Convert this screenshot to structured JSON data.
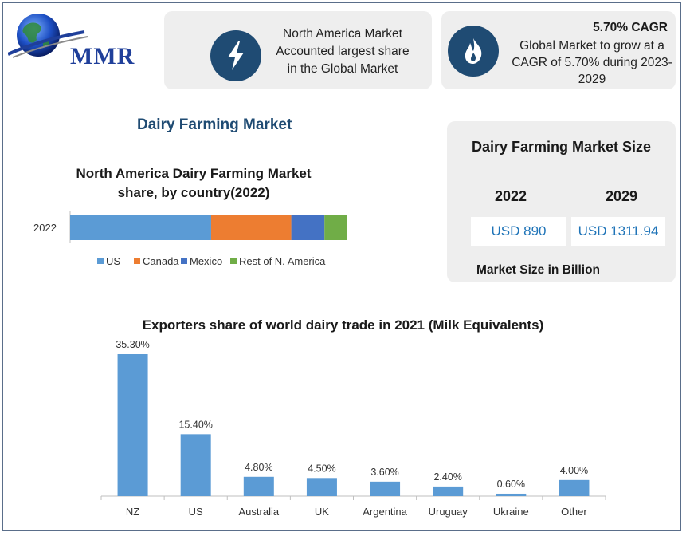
{
  "brand": {
    "logo_text": "MMR"
  },
  "highlight_1": {
    "icon": "lightning-icon",
    "lines": [
      "North America Market",
      "Accounted largest share",
      "in the Global Market"
    ]
  },
  "highlight_2": {
    "icon": "flame-icon",
    "title": "5.70% CAGR",
    "lines": [
      "Global Market to grow at a",
      "CAGR of 5.70% during 2023-",
      "2029"
    ]
  },
  "main_title": "Dairy Farming Market",
  "market_size": {
    "title": "Dairy Farming Market Size",
    "year_a": "2022",
    "year_b": "2029",
    "value_a": "USD 890",
    "value_b": "USD 1311.94",
    "footnote": "Market Size in Billion"
  },
  "colors": {
    "dark_blue": "#1f4b73",
    "bar_blue": "#5b9bd5",
    "orange": "#ed7d31",
    "mid_blue": "#4472c4",
    "green": "#70ad47"
  },
  "chart_data": [
    {
      "type": "bar",
      "orientation": "horizontal-stacked",
      "title": "North America Dairy Farming Market share, by country(2022)",
      "categories": [
        "2022"
      ],
      "series": [
        {
          "name": "US",
          "values": [
            51
          ],
          "color": "#5b9bd5"
        },
        {
          "name": "Canada",
          "values": [
            29
          ],
          "color": "#ed7d31"
        },
        {
          "name": "Mexico",
          "values": [
            12
          ],
          "color": "#4472c4"
        },
        {
          "name": "Rest of N. America",
          "values": [
            8
          ],
          "color": "#70ad47"
        }
      ],
      "legend_position": "bottom",
      "grid": false
    },
    {
      "type": "bar",
      "title": "Exporters share of world dairy trade in 2021 (Milk Equivalents)",
      "categories": [
        "NZ",
        "US",
        "Australia",
        "UK",
        "Argentina",
        "Uruguay",
        "Ukraine",
        "Other"
      ],
      "values": [
        35.3,
        15.4,
        4.8,
        4.5,
        3.6,
        2.4,
        0.6,
        4.0
      ],
      "data_labels": [
        "35.30%",
        "15.40%",
        "4.80%",
        "4.50%",
        "3.60%",
        "2.40%",
        "0.60%",
        "4.00%"
      ],
      "color": "#5b9bd5",
      "ylim": [
        0,
        35.3
      ],
      "grid": false
    }
  ]
}
